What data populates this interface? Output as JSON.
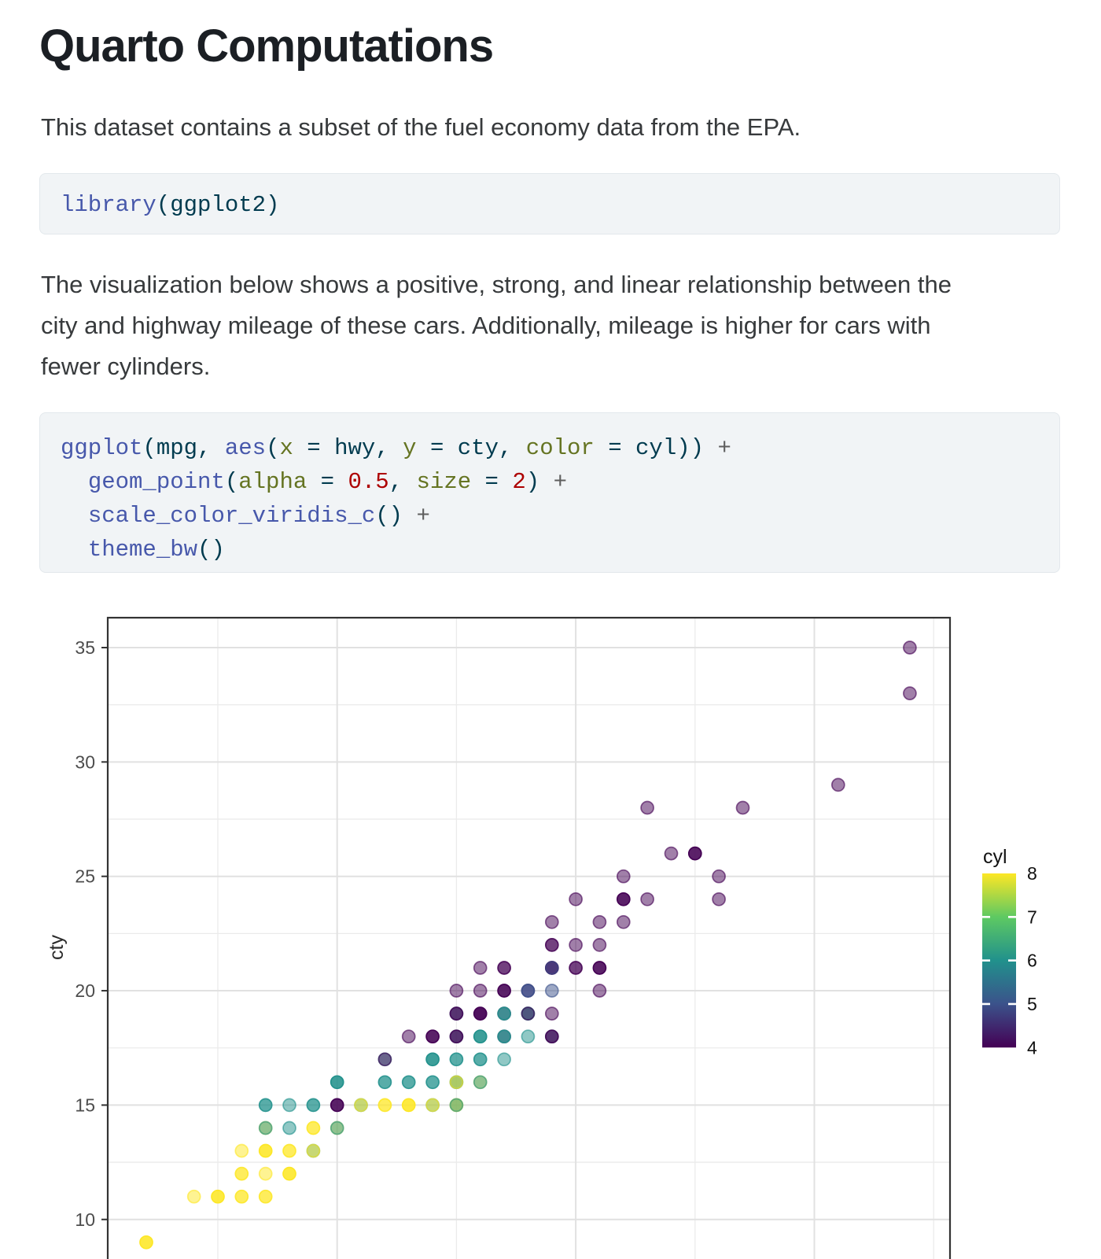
{
  "doc": {
    "title": "Quarto Computations",
    "intro": "This dataset contains a subset of the fuel economy data from the EPA.",
    "description_lines": [
      "The visualization below shows a positive, strong, and linear relationship between the",
      "city and highway mileage of these cars. Additionally, mileage is higher for cars with",
      "fewer cylinders."
    ]
  },
  "code_style": {
    "fu": "#4758AB",
    "pl": "#003B4F",
    "at": "#657422",
    "ot": "#003B4F",
    "nu": "#AD0000",
    "op": "#5E5E5E"
  },
  "code_blocks": [
    {
      "name": "library-call",
      "lines": [
        [
          [
            "fu",
            "library"
          ],
          [
            "pl",
            "(ggplot2)"
          ]
        ]
      ]
    },
    {
      "name": "ggplot-call",
      "lines": [
        [
          [
            "fu",
            "ggplot"
          ],
          [
            "pl",
            "("
          ],
          [
            "pl",
            "mpg"
          ],
          [
            "pl",
            ", "
          ],
          [
            "fu",
            "aes"
          ],
          [
            "pl",
            "("
          ],
          [
            "at",
            "x"
          ],
          [
            "ot",
            " = "
          ],
          [
            "pl",
            "hwy"
          ],
          [
            "pl",
            ", "
          ],
          [
            "at",
            "y"
          ],
          [
            "ot",
            " = "
          ],
          [
            "pl",
            "cty"
          ],
          [
            "pl",
            ", "
          ],
          [
            "at",
            "color"
          ],
          [
            "ot",
            " = "
          ],
          [
            "pl",
            "cyl"
          ],
          [
            "pl",
            "))"
          ],
          [
            "op",
            " +"
          ]
        ],
        [
          [
            "pl",
            "  "
          ],
          [
            "fu",
            "geom_point"
          ],
          [
            "pl",
            "("
          ],
          [
            "at",
            "alpha"
          ],
          [
            "ot",
            " = "
          ],
          [
            "nu",
            "0.5"
          ],
          [
            "pl",
            ", "
          ],
          [
            "at",
            "size"
          ],
          [
            "ot",
            " = "
          ],
          [
            "nu",
            "2"
          ],
          [
            "pl",
            ")"
          ],
          [
            "op",
            " +"
          ]
        ],
        [
          [
            "pl",
            "  "
          ],
          [
            "fu",
            "scale_color_viridis_c"
          ],
          [
            "pl",
            "()"
          ],
          [
            "op",
            " +"
          ]
        ],
        [
          [
            "pl",
            "  "
          ],
          [
            "fu",
            "theme_bw"
          ],
          [
            "pl",
            "()"
          ]
        ]
      ]
    }
  ],
  "chart_data": {
    "type": "scatter",
    "x_var": "hwy",
    "y_var": "cty",
    "color_var": "cyl",
    "ylabel": "cty",
    "x_domain": [
      10.4,
      45.7
    ],
    "y_domain_visible_top": 36.3,
    "x_breaks_major": [
      20,
      30,
      40
    ],
    "x_breaks_minor": [
      15,
      25,
      35,
      45
    ],
    "y_breaks_major": [
      10,
      15,
      20,
      25,
      30,
      35
    ],
    "y_breaks_minor": [
      12.5,
      17.5,
      22.5,
      27.5,
      32.5
    ],
    "point_alpha": 0.5,
    "point_size": 2,
    "viridis": {
      "4": "#440154",
      "5": "#3B528B",
      "6": "#21918C",
      "7": "#5EC962",
      "8": "#FDE725"
    },
    "legend": {
      "title": "cyl",
      "tick_labels": [
        8,
        7,
        6,
        5,
        4
      ],
      "orientation": "vertical",
      "position": "right"
    },
    "style": {
      "panel_border": "#333333",
      "grid_major": "#e1e1e1",
      "grid_minor": "#ebebeb",
      "tick_color": "#333333",
      "tick_label": "#4d4d4d",
      "axis_title": "#2b2b2b",
      "legend_text": "#111111"
    },
    "points": [
      [
        12,
        9,
        [
          [
            8,
            3
          ]
        ]
      ],
      [
        14,
        11,
        [
          [
            8,
            1
          ]
        ]
      ],
      [
        15,
        11,
        [
          [
            8,
            3
          ]
        ]
      ],
      [
        16,
        11,
        [
          [
            8,
            2
          ]
        ]
      ],
      [
        17,
        11,
        [
          [
            8,
            2
          ]
        ]
      ],
      [
        16,
        12,
        [
          [
            8,
            2
          ]
        ]
      ],
      [
        17,
        12,
        [
          [
            8,
            1
          ]
        ]
      ],
      [
        18,
        12,
        [
          [
            8,
            3
          ]
        ]
      ],
      [
        16,
        13,
        [
          [
            8,
            1
          ]
        ]
      ],
      [
        17,
        13,
        [
          [
            8,
            3
          ]
        ]
      ],
      [
        18,
        13,
        [
          [
            8,
            2
          ]
        ]
      ],
      [
        19,
        13,
        [
          [
            6,
            1
          ],
          [
            8,
            1
          ]
        ]
      ],
      [
        17,
        14,
        [
          [
            8,
            1
          ],
          [
            6,
            1
          ]
        ]
      ],
      [
        18,
        14,
        [
          [
            6,
            1
          ]
        ]
      ],
      [
        19,
        14,
        [
          [
            8,
            2
          ]
        ]
      ],
      [
        20,
        14,
        [
          [
            8,
            1
          ],
          [
            6,
            1
          ]
        ]
      ],
      [
        17,
        15,
        [
          [
            6,
            2
          ]
        ]
      ],
      [
        18,
        15,
        [
          [
            6,
            1
          ]
        ]
      ],
      [
        19,
        15,
        [
          [
            6,
            2
          ]
        ]
      ],
      [
        20,
        15,
        [
          [
            4,
            3
          ]
        ]
      ],
      [
        21,
        15,
        [
          [
            6,
            1
          ],
          [
            8,
            1
          ]
        ]
      ],
      [
        22,
        15,
        [
          [
            8,
            2
          ]
        ]
      ],
      [
        23,
        15,
        [
          [
            8,
            3
          ]
        ]
      ],
      [
        24,
        15,
        [
          [
            6,
            1
          ],
          [
            8,
            1
          ]
        ]
      ],
      [
        25,
        15,
        [
          [
            8,
            2
          ],
          [
            6,
            1
          ]
        ]
      ],
      [
        20,
        16,
        [
          [
            6,
            3
          ]
        ]
      ],
      [
        22,
        16,
        [
          [
            6,
            2
          ]
        ]
      ],
      [
        23,
        16,
        [
          [
            6,
            2
          ]
        ]
      ],
      [
        24,
        16,
        [
          [
            6,
            2
          ]
        ]
      ],
      [
        25,
        16,
        [
          [
            6,
            2
          ],
          [
            8,
            1
          ]
        ]
      ],
      [
        26,
        16,
        [
          [
            8,
            1
          ],
          [
            6,
            1
          ]
        ]
      ],
      [
        22,
        17,
        [
          [
            6,
            1
          ],
          [
            4,
            1
          ]
        ]
      ],
      [
        24,
        17,
        [
          [
            6,
            3
          ]
        ]
      ],
      [
        25,
        17,
        [
          [
            6,
            2
          ]
        ]
      ],
      [
        26,
        17,
        [
          [
            6,
            2
          ]
        ]
      ],
      [
        27,
        17,
        [
          [
            6,
            1
          ]
        ]
      ],
      [
        23,
        18,
        [
          [
            4,
            1
          ]
        ]
      ],
      [
        24,
        18,
        [
          [
            4,
            3
          ]
        ]
      ],
      [
        25,
        18,
        [
          [
            6,
            1
          ],
          [
            4,
            2
          ]
        ]
      ],
      [
        26,
        18,
        [
          [
            6,
            3
          ]
        ]
      ],
      [
        27,
        18,
        [
          [
            4,
            1
          ],
          [
            6,
            2
          ]
        ]
      ],
      [
        28,
        18,
        [
          [
            6,
            1
          ]
        ]
      ],
      [
        29,
        18,
        [
          [
            6,
            1
          ],
          [
            4,
            2
          ]
        ]
      ],
      [
        25,
        19,
        [
          [
            6,
            1
          ],
          [
            4,
            2
          ]
        ]
      ],
      [
        26,
        19,
        [
          [
            4,
            4
          ]
        ]
      ],
      [
        27,
        19,
        [
          [
            4,
            1
          ],
          [
            6,
            2
          ]
        ]
      ],
      [
        28,
        19,
        [
          [
            6,
            2
          ],
          [
            4,
            1
          ]
        ]
      ],
      [
        29,
        19,
        [
          [
            4,
            1
          ]
        ]
      ],
      [
        25,
        20,
        [
          [
            4,
            1
          ]
        ]
      ],
      [
        26,
        20,
        [
          [
            4,
            1
          ]
        ]
      ],
      [
        27,
        20,
        [
          [
            4,
            3
          ]
        ]
      ],
      [
        28,
        20,
        [
          [
            4,
            1
          ],
          [
            5,
            2
          ]
        ]
      ],
      [
        29,
        20,
        [
          [
            5,
            1
          ]
        ]
      ],
      [
        31,
        20,
        [
          [
            4,
            1
          ]
        ]
      ],
      [
        26,
        21,
        [
          [
            4,
            1
          ]
        ]
      ],
      [
        27,
        21,
        [
          [
            4,
            2
          ]
        ]
      ],
      [
        29,
        21,
        [
          [
            4,
            3
          ],
          [
            5,
            1
          ]
        ]
      ],
      [
        30,
        21,
        [
          [
            4,
            2
          ]
        ]
      ],
      [
        31,
        21,
        [
          [
            4,
            3
          ]
        ]
      ],
      [
        29,
        22,
        [
          [
            4,
            2
          ]
        ]
      ],
      [
        30,
        22,
        [
          [
            4,
            1
          ]
        ]
      ],
      [
        31,
        22,
        [
          [
            4,
            1
          ]
        ]
      ],
      [
        29,
        23,
        [
          [
            4,
            1
          ]
        ]
      ],
      [
        31,
        23,
        [
          [
            4,
            1
          ]
        ]
      ],
      [
        32,
        23,
        [
          [
            4,
            1
          ]
        ]
      ],
      [
        30,
        24,
        [
          [
            4,
            1
          ]
        ]
      ],
      [
        32,
        24,
        [
          [
            4,
            3
          ]
        ]
      ],
      [
        33,
        24,
        [
          [
            4,
            1
          ]
        ]
      ],
      [
        36,
        24,
        [
          [
            4,
            1
          ]
        ]
      ],
      [
        32,
        25,
        [
          [
            4,
            1
          ]
        ]
      ],
      [
        36,
        25,
        [
          [
            4,
            1
          ]
        ]
      ],
      [
        34,
        26,
        [
          [
            4,
            1
          ]
        ]
      ],
      [
        35,
        26,
        [
          [
            4,
            3
          ]
        ]
      ],
      [
        33,
        28,
        [
          [
            4,
            1
          ]
        ]
      ],
      [
        37,
        28,
        [
          [
            4,
            1
          ]
        ]
      ],
      [
        41,
        29,
        [
          [
            4,
            1
          ]
        ]
      ],
      [
        44,
        33,
        [
          [
            4,
            1
          ]
        ]
      ],
      [
        44,
        35,
        [
          [
            4,
            1
          ]
        ]
      ]
    ]
  }
}
